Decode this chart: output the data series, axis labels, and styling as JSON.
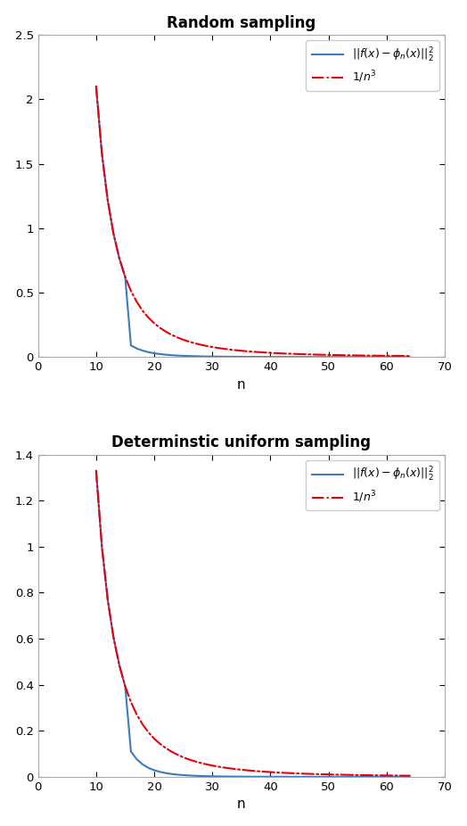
{
  "title1": "Random sampling",
  "title2": "Determinstic uniform sampling",
  "xlabel": "n",
  "blue_color": "#3a7bbf",
  "red_color": "#e8000b",
  "n_start": 10,
  "n_end": 64,
  "xlim": [
    0,
    70
  ],
  "ylim1": [
    0,
    2.5
  ],
  "ylim2": [
    0,
    1.4
  ],
  "yticks1": [
    0,
    0.5,
    1.0,
    1.5,
    2.0,
    2.5
  ],
  "yticks2": [
    0,
    0.2,
    0.4,
    0.6,
    0.8,
    1.0,
    1.2,
    1.4
  ],
  "xticks": [
    0,
    10,
    20,
    30,
    40,
    50,
    60,
    70
  ],
  "scale_ref1": 2100.0,
  "scale_ref2": 1330.0,
  "figwidth": 5.24,
  "figheight": 9.26,
  "dpi": 100
}
